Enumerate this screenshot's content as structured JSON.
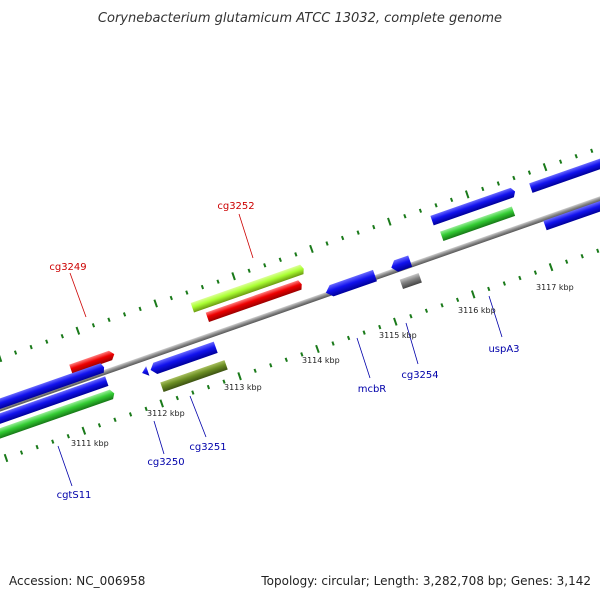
{
  "title": "Corynebacterium glutamicum ATCC 13032, complete genome",
  "footer": {
    "accession": "Accession: NC_006958",
    "summary": "Topology: circular; Length: 3,282,708 bp; Genes: 3,142"
  },
  "ticks": [
    "3111 kbp",
    "3112 kbp",
    "3113 kbp",
    "3114 kbp",
    "3115 kbp",
    "3116 kbp",
    "3117 kbp"
  ],
  "genes": [
    {
      "label": "cg3249",
      "color": "#ff0000",
      "strand": "reverse"
    },
    {
      "label": "cg3252",
      "color": "#aaff33",
      "strand": "forward"
    },
    {
      "label": "cgtS11",
      "color": "#33cc33",
      "strand": "forward"
    },
    {
      "label": "cg3250",
      "color": "#0000ee",
      "strand": "reverse"
    },
    {
      "label": "cg3251",
      "color": "#6b8e23",
      "strand": "reverse"
    },
    {
      "label": "mcbR",
      "color": "#0000ee",
      "strand": "reverse"
    },
    {
      "label": "cg3254",
      "color": "#808080",
      "strand": "forward"
    },
    {
      "label": "uspA3",
      "color": "#33cc33",
      "strand": "forward"
    }
  ],
  "colors": {
    "highlight_label": "#cc0000",
    "normal_label": "#0000aa",
    "backbone": "#888888",
    "tick": "#1a7a1a"
  }
}
